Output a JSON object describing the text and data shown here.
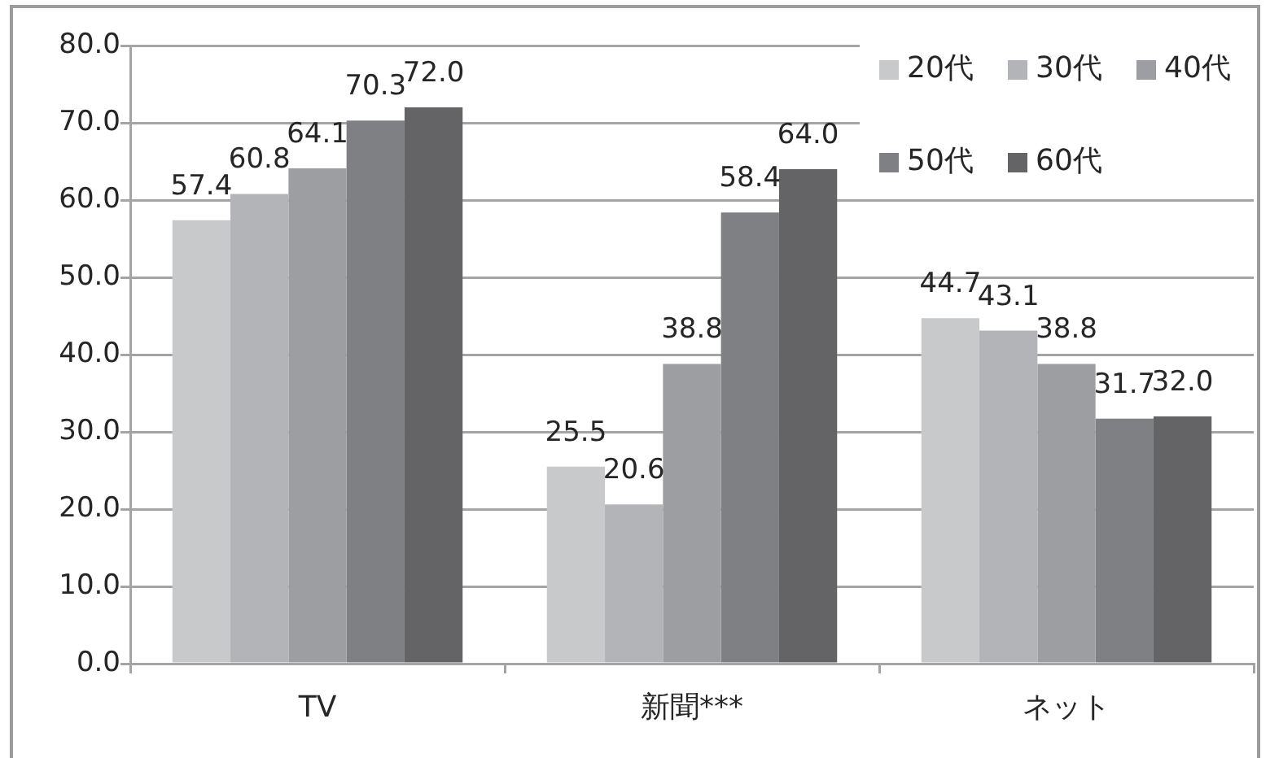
{
  "chart_data": {
    "type": "bar",
    "categories": [
      "TV",
      "新聞***",
      "ネット"
    ],
    "series": [
      {
        "name": "20代",
        "color": "#c8c9cb",
        "values": [
          57.4,
          25.5,
          44.7
        ],
        "value_labels": [
          "57.4",
          "25.5",
          "44.7"
        ]
      },
      {
        "name": "30代",
        "color": "#b3b4b7",
        "values": [
          60.8,
          20.6,
          43.1
        ],
        "value_labels": [
          "60.8",
          "20.6",
          "43.1"
        ]
      },
      {
        "name": "40代",
        "color": "#9d9ea2",
        "values": [
          64.1,
          38.8,
          38.8
        ],
        "value_labels": [
          "64.1",
          "38.8",
          "38.8"
        ]
      },
      {
        "name": "50代",
        "color": "#7f8084",
        "values": [
          70.3,
          58.4,
          31.7
        ],
        "value_labels": [
          "70.3",
          "58.4",
          "31.7"
        ]
      },
      {
        "name": "60代",
        "color": "#646467",
        "values": [
          72.0,
          64.0,
          32.0
        ],
        "value_labels": [
          "72.0",
          "64.0",
          "32.0"
        ]
      }
    ],
    "ylim": [
      0,
      80
    ],
    "yticks": [
      {
        "value": 0,
        "label": "0.0"
      },
      {
        "value": 10,
        "label": "10.0"
      },
      {
        "value": 20,
        "label": "20.0"
      },
      {
        "value": 30,
        "label": "30.0"
      },
      {
        "value": 40,
        "label": "40.0"
      },
      {
        "value": 50,
        "label": "50.0"
      },
      {
        "value": 60,
        "label": "60.0"
      },
      {
        "value": 70,
        "label": "70.0"
      },
      {
        "value": 80,
        "label": "80.0"
      }
    ],
    "grid": "y",
    "legend": "top right"
  }
}
